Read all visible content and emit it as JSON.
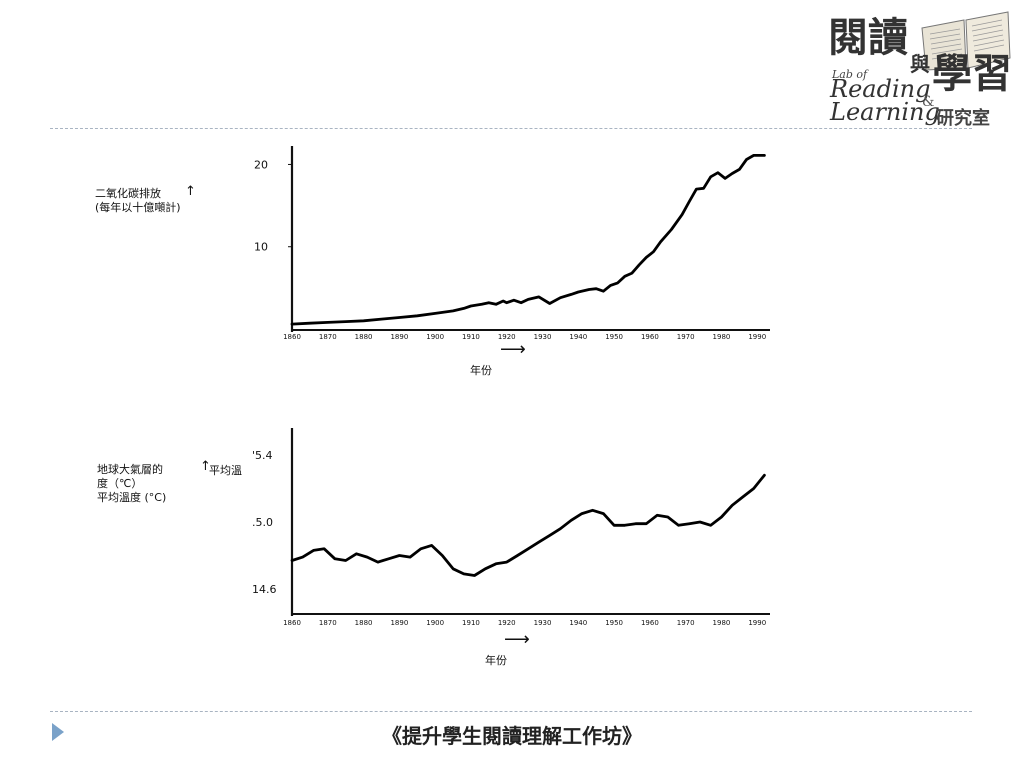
{
  "logo": {
    "char_1": "閱",
    "char_2": "讀",
    "char_3": "與",
    "char_4": "學",
    "char_5": "習",
    "lab_of": "Lab of",
    "reading": "Reading",
    "amp": "&",
    "learning": "Learning",
    "lab_name": "研究室"
  },
  "footer": {
    "title": "《提升學生閱讀理解工作坊》"
  },
  "chart_data": [
    {
      "type": "line",
      "ylabel_line1": "二氧化碳排放",
      "ylabel_arrow": "↑",
      "ylabel_line2": "(每年以十億噸計)",
      "xlabel": "年份",
      "xlabel_arrow": "⟶",
      "x_ticks": [
        1860,
        1870,
        1880,
        1890,
        1900,
        1910,
        1920,
        1930,
        1940,
        1950,
        1960,
        1970,
        1980,
        1990
      ],
      "y_ticks": [
        10,
        20
      ],
      "xlim": [
        1860,
        1993
      ],
      "ylim": [
        0,
        22
      ],
      "x": [
        1860,
        1865,
        1870,
        1875,
        1880,
        1885,
        1890,
        1895,
        1900,
        1905,
        1908,
        1910,
        1913,
        1915,
        1917,
        1919,
        1920,
        1922,
        1924,
        1926,
        1929,
        1932,
        1935,
        1938,
        1940,
        1943,
        1945,
        1947,
        1949,
        1951,
        1953,
        1955,
        1957,
        1959,
        1961,
        1963,
        1966,
        1969,
        1971,
        1973,
        1975,
        1977,
        1979,
        1981,
        1983,
        1985,
        1987,
        1989,
        1992
      ],
      "y": [
        0.6,
        0.7,
        0.8,
        0.9,
        1.0,
        1.2,
        1.4,
        1.6,
        1.9,
        2.2,
        2.5,
        2.8,
        3.0,
        3.2,
        3.0,
        3.4,
        3.2,
        3.5,
        3.2,
        3.6,
        3.9,
        3.1,
        3.8,
        4.2,
        4.5,
        4.8,
        4.9,
        4.6,
        5.3,
        5.6,
        6.4,
        6.8,
        7.8,
        8.7,
        9.4,
        10.6,
        12.1,
        13.9,
        15.5,
        17.0,
        17.1,
        18.5,
        19.0,
        18.3,
        18.9,
        19.4,
        20.6,
        21.1,
        21.1
      ]
    },
    {
      "type": "line",
      "ylabel_line1": "地球大氣層的",
      "ylabel_arrow": "↑",
      "ylabel_arrow_text": "平均溫",
      "ylabel_line2": "度（℃）",
      "ylabel_line3": "平均溫度  (°C)",
      "xlabel": "年份",
      "xlabel_arrow": "⟶",
      "x_ticks": [
        1860,
        1870,
        1880,
        1890,
        1900,
        1910,
        1920,
        1930,
        1940,
        1950,
        1960,
        1970,
        1980,
        1990
      ],
      "y_ticks": [
        "15.4",
        "15.0",
        "14.6"
      ],
      "y_ticks_display": [
        "'5.4",
        ".5.0",
        "14.6"
      ],
      "xlim": [
        1860,
        1993
      ],
      "ylim": [
        14.45,
        15.55
      ],
      "x": [
        1860,
        1863,
        1866,
        1869,
        1872,
        1875,
        1878,
        1881,
        1884,
        1887,
        1890,
        1893,
        1896,
        1899,
        1902,
        1905,
        1908,
        1911,
        1914,
        1917,
        1920,
        1923,
        1926,
        1929,
        1932,
        1935,
        1938,
        1941,
        1944,
        1947,
        1950,
        1953,
        1956,
        1959,
        1962,
        1965,
        1968,
        1971,
        1974,
        1977,
        1980,
        1983,
        1986,
        1989,
        1992
      ],
      "y": [
        14.77,
        14.79,
        14.83,
        14.84,
        14.78,
        14.77,
        14.81,
        14.79,
        14.76,
        14.78,
        14.8,
        14.79,
        14.84,
        14.86,
        14.8,
        14.72,
        14.69,
        14.68,
        14.72,
        14.75,
        14.76,
        14.8,
        14.84,
        14.88,
        14.92,
        14.96,
        15.01,
        15.05,
        15.07,
        15.05,
        14.98,
        14.98,
        14.99,
        14.99,
        15.04,
        15.03,
        14.98,
        14.99,
        15.0,
        14.98,
        15.03,
        15.1,
        15.15,
        15.2,
        15.28
      ]
    }
  ]
}
